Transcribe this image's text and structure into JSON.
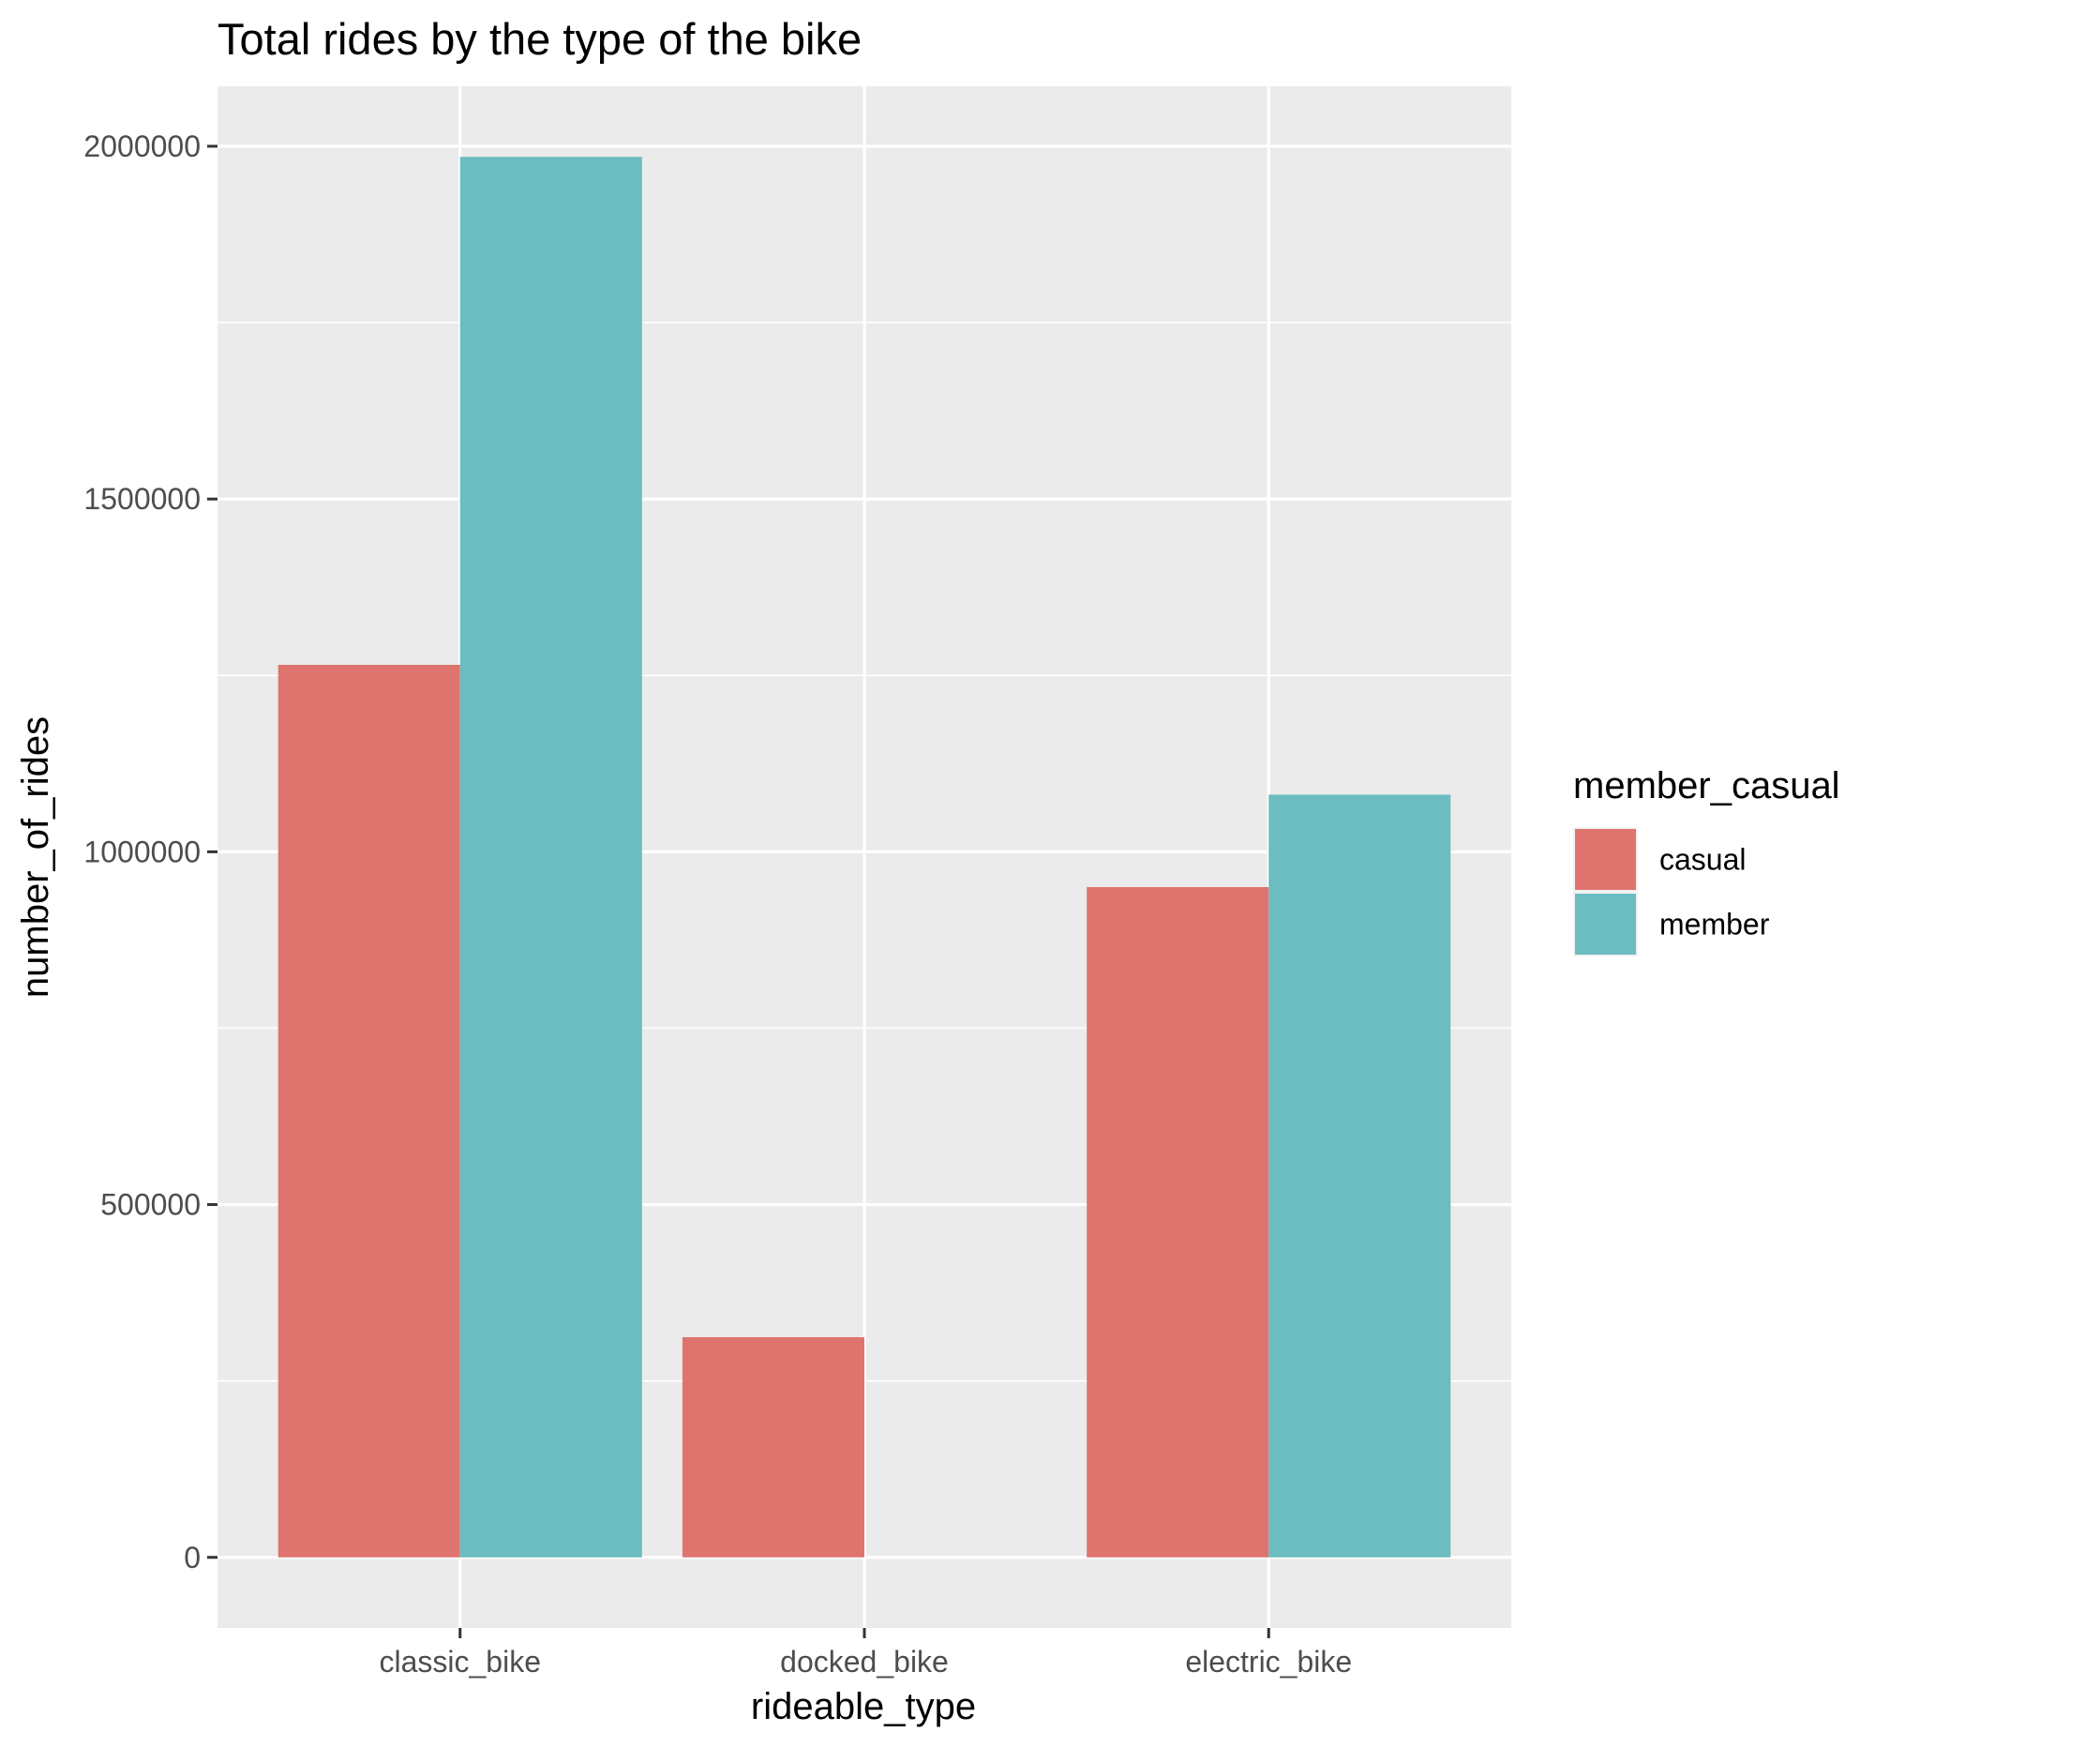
{
  "chart_data": {
    "type": "bar",
    "title": "Total rides by the type of the bike",
    "xlabel": "rideable_type",
    "ylabel": "number_of_rides",
    "categories": [
      "classic_bike",
      "docked_bike",
      "electric_bike"
    ],
    "series": [
      {
        "name": "casual",
        "color": "#df746e",
        "values": [
          1265000,
          312000,
          950000
        ]
      },
      {
        "name": "member",
        "color": "#6cbdc0",
        "values": [
          1985000,
          0,
          1081000
        ]
      }
    ],
    "ylim": [
      -100000,
      2085000
    ],
    "yticks": [
      0,
      500000,
      1000000,
      1500000,
      2000000
    ],
    "ytick_labels": [
      "0",
      "500000",
      "1000000",
      "1500000",
      "2000000"
    ],
    "grid": true,
    "legend": {
      "title": "member_casual",
      "position": "right",
      "entries": [
        "casual",
        "member"
      ]
    }
  }
}
